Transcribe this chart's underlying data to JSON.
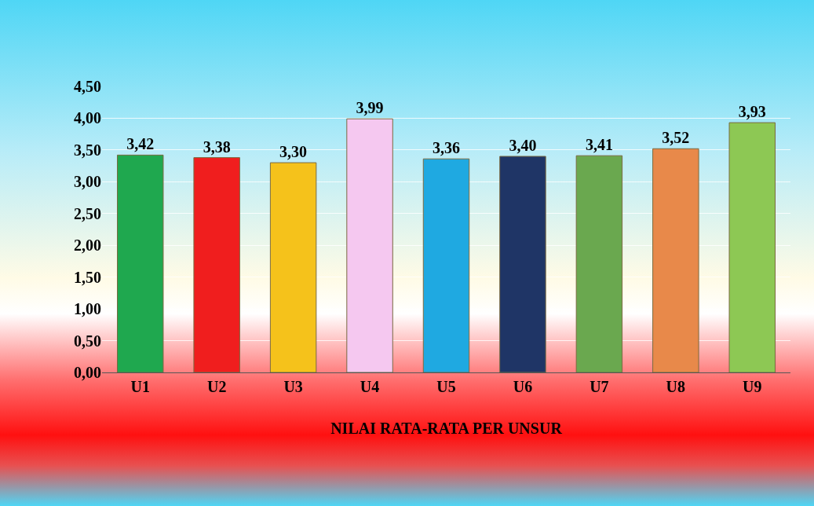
{
  "chart_data": {
    "type": "bar",
    "xlabel": "NILAI RATA-RATA PER UNSUR",
    "categories": [
      "U1",
      "U2",
      "U3",
      "U4",
      "U5",
      "U6",
      "U7",
      "U8",
      "U9"
    ],
    "values": [
      3.42,
      3.38,
      3.3,
      3.99,
      3.36,
      3.4,
      3.41,
      3.52,
      3.93
    ],
    "value_labels": [
      "3,42",
      "3,38",
      "3,30",
      "3,99",
      "3,36",
      "3,40",
      "3,41",
      "3,52",
      "3,93"
    ],
    "colors": [
      "#1fa84f",
      "#f01e1e",
      "#f5c21b",
      "#f5c8f0",
      "#1fa9e1",
      "#1f3566",
      "#6aa84f",
      "#e8894a",
      "#8dc854"
    ],
    "ylim": [
      0,
      4.5
    ],
    "yticks": [
      {
        "value": 0,
        "label": "0,00"
      },
      {
        "value": 0.5,
        "label": "0,50"
      },
      {
        "value": 1,
        "label": "1,00"
      },
      {
        "value": 1.5,
        "label": "1,50"
      },
      {
        "value": 2,
        "label": "2,00"
      },
      {
        "value": 2.5,
        "label": "2,50"
      },
      {
        "value": 3,
        "label": "3,00"
      },
      {
        "value": 3.5,
        "label": "3,50"
      },
      {
        "value": 4,
        "label": "4,00"
      },
      {
        "value": 4.5,
        "label": "4,50"
      }
    ],
    "grid": "y"
  }
}
